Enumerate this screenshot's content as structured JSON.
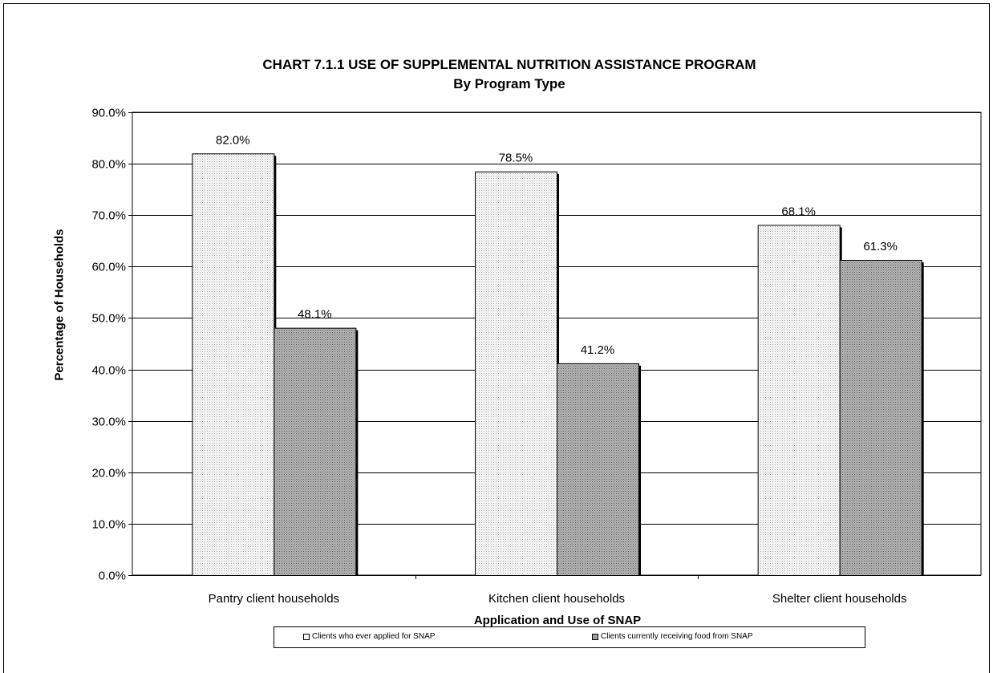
{
  "chart_data": {
    "type": "bar",
    "title": "CHART 7.1.1     USE OF SUPPLEMENTAL NUTRITION ASSISTANCE PROGRAM",
    "subtitle": "By Program Type",
    "xlabel": "Application and Use of SNAP",
    "ylabel": "Percentage of Households",
    "categories": [
      "Pantry client households",
      "Kitchen client households",
      "Shelter client households"
    ],
    "series": [
      {
        "name": "Clients who ever applied for SNAP",
        "values": [
          82.0,
          78.5,
          68.1
        ],
        "labels": [
          "82.0%",
          "78.5%",
          "68.1%"
        ],
        "color": "#f2f2f2"
      },
      {
        "name": "Clients currently receiving food from SNAP",
        "values": [
          48.1,
          41.2,
          61.3
        ],
        "labels": [
          "48.1%",
          "41.2%",
          "61.3%"
        ],
        "color": "#a8a8a8"
      }
    ],
    "ylim": [
      0,
      90
    ],
    "yticks": [
      "0.0%",
      "10.0%",
      "20.0%",
      "30.0%",
      "40.0%",
      "50.0%",
      "60.0%",
      "70.0%",
      "80.0%",
      "90.0%"
    ],
    "grid": true,
    "legend": "bottom"
  }
}
